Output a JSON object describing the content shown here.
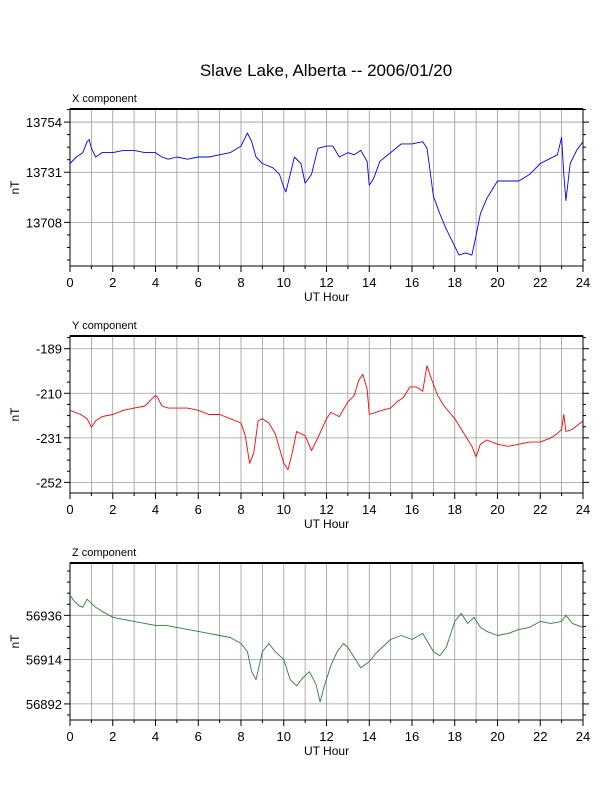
{
  "title": "Slave Lake, Alberta -- 2006/01/20",
  "chart_data": [
    {
      "type": "line",
      "panel_label": "X component",
      "xlabel": "UT Hour",
      "ylabel": "nT",
      "xlim": [
        0,
        24
      ],
      "ylim": [
        13688,
        13760
      ],
      "x_ticks": [
        0,
        2,
        4,
        6,
        8,
        10,
        12,
        14,
        16,
        18,
        20,
        22,
        24
      ],
      "y_ticks": [
        13708,
        13731,
        13754
      ],
      "grid": true,
      "color": "#0000ff",
      "x": [
        0,
        0.3,
        0.6,
        0.8,
        0.9,
        1.0,
        1.2,
        1.5,
        2.0,
        2.5,
        3.0,
        3.5,
        4.0,
        4.3,
        4.6,
        5.0,
        5.5,
        6.0,
        6.5,
        7.0,
        7.5,
        8.0,
        8.3,
        8.5,
        8.7,
        9.0,
        9.5,
        9.8,
        10.0,
        10.1,
        10.3,
        10.5,
        10.8,
        11.0,
        11.3,
        11.6,
        12.0,
        12.3,
        12.6,
        13.0,
        13.3,
        13.6,
        13.9,
        14.0,
        14.2,
        14.5,
        15.0,
        15.5,
        16.0,
        16.5,
        16.7,
        16.8,
        17.0,
        17.3,
        17.6,
        18.0,
        18.2,
        18.5,
        18.8,
        19.0,
        19.2,
        19.5,
        20.0,
        20.5,
        21.0,
        21.5,
        22.0,
        22.4,
        22.8,
        23.0,
        23.1,
        23.2,
        23.4,
        23.7,
        24.0
      ],
      "y": [
        13735,
        13738,
        13740,
        13745,
        13746,
        13742,
        13738,
        13740,
        13740,
        13741,
        13741,
        13740,
        13740,
        13738,
        13737,
        13738,
        13737,
        13738,
        13738,
        13739,
        13740,
        13743,
        13749,
        13745,
        13738,
        13735,
        13733,
        13730,
        13724,
        13722,
        13730,
        13738,
        13735,
        13726,
        13730,
        13742,
        13743,
        13743,
        13738,
        13740,
        13739,
        13741,
        13736,
        13725,
        13728,
        13736,
        13740,
        13744,
        13744,
        13745,
        13742,
        13735,
        13720,
        13712,
        13705,
        13697,
        13693,
        13694,
        13693,
        13702,
        13712,
        13719,
        13727,
        13727,
        13727,
        13730,
        13735,
        13737,
        13739,
        13747,
        13730,
        13718,
        13735,
        13741,
        13745
      ]
    },
    {
      "type": "line",
      "panel_label": "Y component",
      "xlabel": "UT Hour",
      "ylabel": "nT",
      "xlim": [
        0,
        24
      ],
      "ylim": [
        -257,
        -183
      ],
      "x_ticks": [
        0,
        2,
        4,
        6,
        8,
        10,
        12,
        14,
        16,
        18,
        20,
        22,
        24
      ],
      "y_ticks": [
        -189,
        -210,
        -231,
        -252
      ],
      "grid": true,
      "color": "#ff0000",
      "x": [
        0,
        0.5,
        0.8,
        1.0,
        1.2,
        1.5,
        2.0,
        2.5,
        3.0,
        3.5,
        4.0,
        4.1,
        4.3,
        4.6,
        5.0,
        5.5,
        6.0,
        6.5,
        7.0,
        7.5,
        8.0,
        8.2,
        8.4,
        8.6,
        8.8,
        9.0,
        9.3,
        9.6,
        10.0,
        10.2,
        10.4,
        10.6,
        11.0,
        11.3,
        11.6,
        12.0,
        12.2,
        12.4,
        12.6,
        13.0,
        13.3,
        13.5,
        13.7,
        13.9,
        14.0,
        14.3,
        14.6,
        15.0,
        15.3,
        15.6,
        15.9,
        16.2,
        16.5,
        16.7,
        16.9,
        17.2,
        17.5,
        18.0,
        18.5,
        18.8,
        19.0,
        19.2,
        19.5,
        20.0,
        20.5,
        21.0,
        21.5,
        22.0,
        22.5,
        22.8,
        23.0,
        23.1,
        23.2,
        23.5,
        24.0
      ],
      "y": [
        -218,
        -220,
        -222,
        -226,
        -223,
        -221,
        -220,
        -218,
        -217,
        -216,
        -211,
        -212,
        -216,
        -217,
        -217,
        -217,
        -218,
        -220,
        -220,
        -222,
        -224,
        -230,
        -243,
        -238,
        -223,
        -222,
        -224,
        -229,
        -243,
        -246,
        -238,
        -228,
        -230,
        -237,
        -231,
        -222,
        -219,
        -220,
        -221,
        -214,
        -211,
        -204,
        -201,
        -208,
        -220,
        -219,
        -218,
        -217,
        -214,
        -212,
        -207,
        -207,
        -209,
        -197,
        -203,
        -211,
        -216,
        -222,
        -230,
        -235,
        -240,
        -234,
        -232,
        -234,
        -235,
        -234,
        -233,
        -233,
        -231,
        -229,
        -227,
        -220,
        -228,
        -227,
        -223
      ]
    },
    {
      "type": "line",
      "panel_label": "Z component",
      "xlabel": "UT Hour",
      "ylabel": "nT",
      "xlim": [
        0,
        24
      ],
      "ylim": [
        56884,
        56962
      ],
      "x_ticks": [
        0,
        2,
        4,
        6,
        8,
        10,
        12,
        14,
        16,
        18,
        20,
        22,
        24
      ],
      "y_ticks": [
        56892,
        56914,
        56936
      ],
      "grid": true,
      "color": "#2e7d32",
      "x": [
        0,
        0.2,
        0.4,
        0.6,
        0.8,
        1.0,
        1.2,
        1.5,
        2.0,
        2.5,
        3.0,
        3.5,
        4.0,
        4.5,
        5.0,
        5.5,
        6.0,
        6.5,
        7.0,
        7.5,
        8.0,
        8.3,
        8.5,
        8.7,
        9.0,
        9.3,
        9.6,
        10.0,
        10.3,
        10.6,
        10.9,
        11.2,
        11.5,
        11.7,
        11.9,
        12.2,
        12.5,
        12.8,
        13.0,
        13.3,
        13.6,
        14.0,
        14.3,
        14.6,
        15.0,
        15.5,
        16.0,
        16.5,
        17.0,
        17.3,
        17.6,
        18.0,
        18.3,
        18.6,
        18.9,
        19.2,
        19.5,
        20.0,
        20.5,
        21.0,
        21.5,
        22.0,
        22.5,
        23.0,
        23.2,
        23.5,
        24.0
      ],
      "y": [
        56946,
        56943,
        56941,
        56940,
        56944,
        56942,
        56940,
        56938,
        56935,
        56934,
        56933,
        56932,
        56931,
        56931,
        56930,
        56929,
        56928,
        56927,
        56926,
        56925,
        56922,
        56918,
        56908,
        56904,
        56918,
        56922,
        56918,
        56914,
        56904,
        56901,
        56905,
        56908,
        56902,
        56893,
        56901,
        56911,
        56918,
        56922,
        56920,
        56915,
        56910,
        56913,
        56917,
        56920,
        56924,
        56926,
        56924,
        56927,
        56918,
        56916,
        56920,
        56933,
        56937,
        56932,
        56935,
        56930,
        56928,
        56926,
        56927,
        56929,
        56930,
        56933,
        56932,
        56933,
        56936,
        56932,
        56930
      ]
    }
  ]
}
